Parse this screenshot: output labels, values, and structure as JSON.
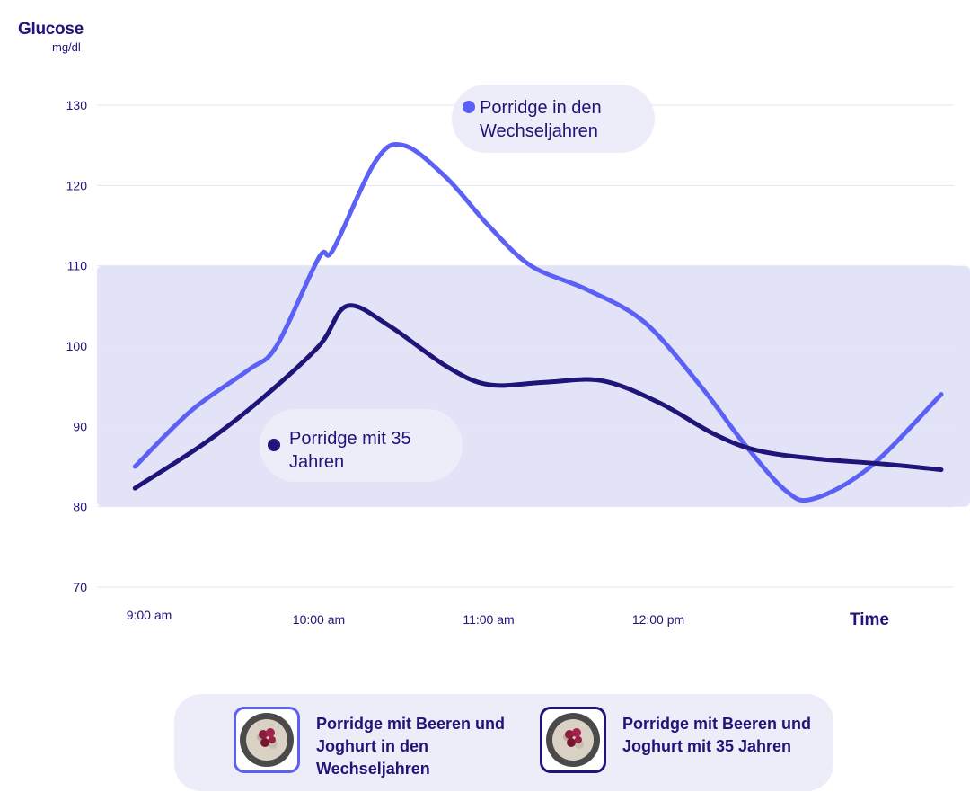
{
  "chart_data": {
    "type": "line",
    "ylabel": "Glucose",
    "yunit": "mg/dl",
    "xlabel": "Time",
    "ylim": [
      70,
      130
    ],
    "yticks": [
      70,
      80,
      90,
      100,
      110,
      120,
      130
    ],
    "xticks": [
      "9:00 am",
      "10:00 am",
      "11:00 am",
      "12:00 pm"
    ],
    "target_range": [
      80,
      110
    ],
    "series": [
      {
        "name": "Porridge in den Wechseljahren",
        "color": "#5b61f4",
        "points": [
          [
            "8:55 am",
            85
          ],
          [
            "9:15 am",
            92
          ],
          [
            "9:35 am",
            97
          ],
          [
            "9:45 am",
            100
          ],
          [
            "10:00 am",
            111
          ],
          [
            "10:05 am",
            112
          ],
          [
            "10:20 am",
            123
          ],
          [
            "10:30 am",
            125
          ],
          [
            "10:45 am",
            121
          ],
          [
            "11:00 am",
            115
          ],
          [
            "11:15 am",
            110
          ],
          [
            "11:35 am",
            107
          ],
          [
            "11:55 am",
            103
          ],
          [
            "12:15 pm",
            95
          ],
          [
            "12:30 pm",
            88
          ],
          [
            "12:45 pm",
            82
          ],
          [
            "12:55 pm",
            81
          ],
          [
            "1:15 pm",
            85
          ],
          [
            "1:40 pm",
            94
          ]
        ]
      },
      {
        "name": "Porridge mit 35 Jahren",
        "color": "#1f1478",
        "points": [
          [
            "8:55 am",
            82.3
          ],
          [
            "9:20 am",
            88
          ],
          [
            "9:40 am",
            93.5
          ],
          [
            "10:00 am",
            100
          ],
          [
            "10:10 am",
            105
          ],
          [
            "10:25 am",
            102.5
          ],
          [
            "10:45 am",
            97.5
          ],
          [
            "11:00 am",
            95.2
          ],
          [
            "11:20 am",
            95.5
          ],
          [
            "11:40 am",
            95.7
          ],
          [
            "12:00 pm",
            93
          ],
          [
            "12:20 pm",
            89
          ],
          [
            "12:35 pm",
            87
          ],
          [
            "12:55 pm",
            86
          ],
          [
            "1:20 pm",
            85.3
          ],
          [
            "1:40 pm",
            84.6
          ]
        ]
      }
    ]
  },
  "callouts": {
    "a": "Porridge in den Wechseljahren",
    "b": "Porridge mit 35 Jahren"
  },
  "legend": {
    "a": "Porridge mit Beeren und Joghurt in den Wechseljahren",
    "b": "Porridge mit Beeren und Joghurt mit 35 Jahren"
  }
}
